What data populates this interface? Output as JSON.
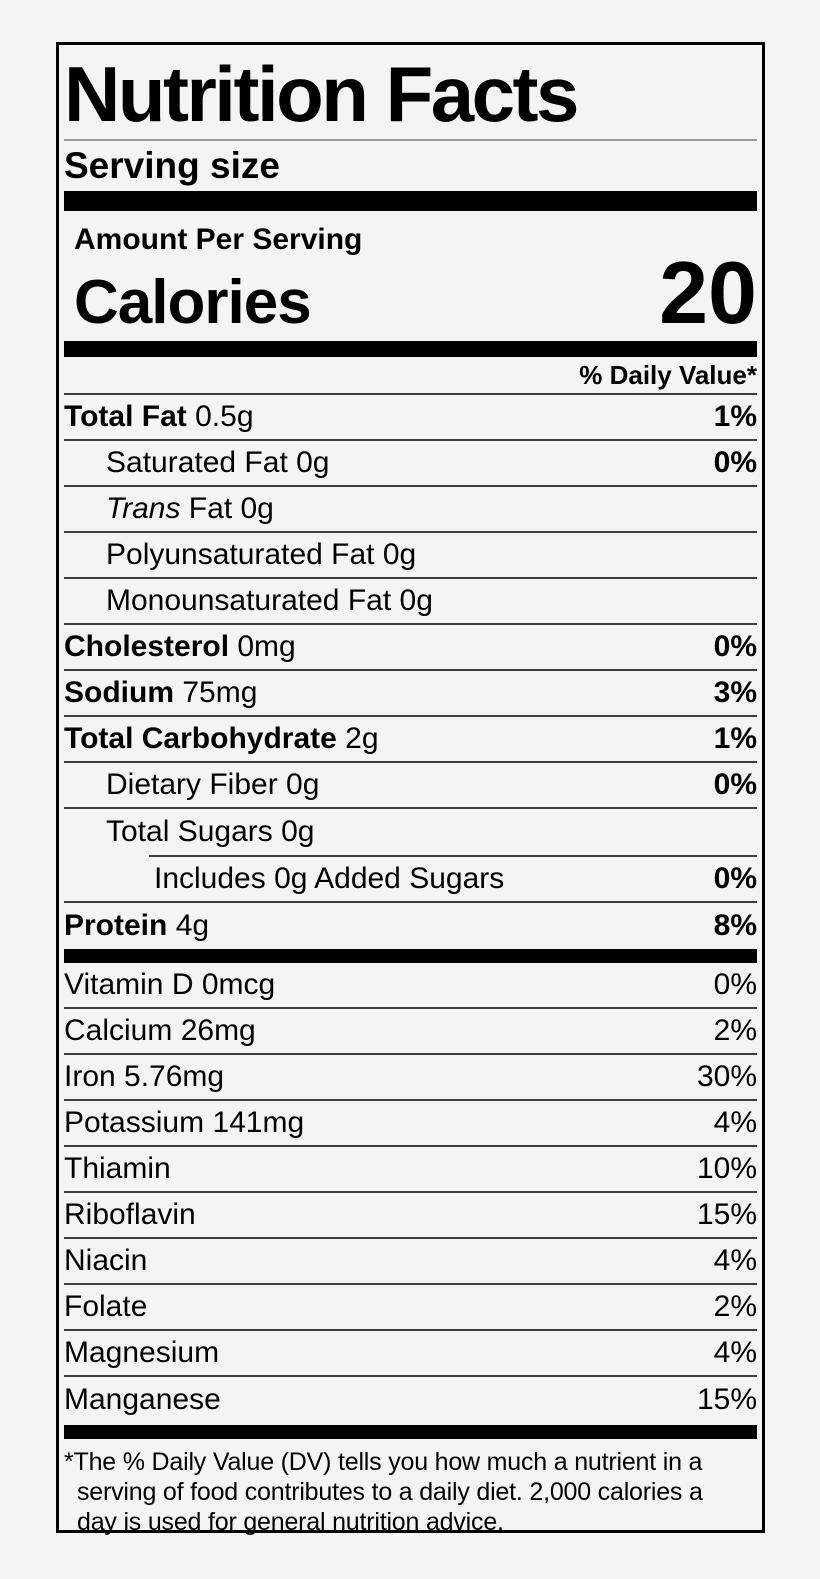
{
  "label": {
    "title": "Nutrition Facts",
    "serving_size_label": "Serving size",
    "amount_per_serving_label": "Amount Per Serving",
    "calories_label": "Calories",
    "calories_value": "20",
    "daily_value_header": "% Daily Value*",
    "colors": {
      "background": "#f4f4f5",
      "text": "#000000",
      "thick_bar": "#000000",
      "row_divider": "#3d3d3d",
      "title_underline": "#9a9a9a"
    },
    "nutrients": [
      {
        "name": "Total Fat",
        "amount": "0.5g",
        "style": "bold",
        "percent": "1%",
        "percent_bold": true,
        "indent": 0
      },
      {
        "name": "Saturated Fat",
        "amount": "0g",
        "style": "plain",
        "percent": "0%",
        "percent_bold": true,
        "indent": 1
      },
      {
        "name": "Trans",
        "amount": "Fat 0g",
        "style": "italic",
        "percent": "",
        "percent_bold": false,
        "indent": 1
      },
      {
        "name": "Polyunsaturated Fat",
        "amount": "0g",
        "style": "plain",
        "percent": "",
        "percent_bold": false,
        "indent": 1
      },
      {
        "name": "Monounsaturated Fat",
        "amount": "0g",
        "style": "plain",
        "percent": "",
        "percent_bold": false,
        "indent": 1
      },
      {
        "name": "Cholesterol",
        "amount": "0mg",
        "style": "bold",
        "percent": "0%",
        "percent_bold": true,
        "indent": 0
      },
      {
        "name": "Sodium",
        "amount": "75mg",
        "style": "bold",
        "percent": "3%",
        "percent_bold": true,
        "indent": 0
      },
      {
        "name": "Total Carbohydrate",
        "amount": "2g",
        "style": "bold",
        "percent": "1%",
        "percent_bold": true,
        "indent": 0
      },
      {
        "name": "Dietary Fiber",
        "amount": "0g",
        "style": "plain",
        "percent": "0%",
        "percent_bold": true,
        "indent": 1
      },
      {
        "name": "Total Sugars",
        "amount": "0g",
        "style": "plain",
        "percent": "",
        "percent_bold": false,
        "indent": 1,
        "no_divider": true
      },
      {
        "name": "Includes 0g Added Sugars",
        "amount": "",
        "style": "plain",
        "percent": "0%",
        "percent_bold": true,
        "indent": 2,
        "partial_divider_above": true
      },
      {
        "name": "Protein",
        "amount": "4g",
        "style": "bold",
        "percent": "8%",
        "percent_bold": true,
        "indent": 0,
        "no_divider": true
      }
    ],
    "vitamins": [
      {
        "name": "Vitamin D",
        "amount": "0mcg",
        "style": "plain",
        "percent": "0%",
        "percent_bold": false,
        "indent": 0
      },
      {
        "name": "Calcium",
        "amount": "26mg",
        "style": "plain",
        "percent": "2%",
        "percent_bold": false,
        "indent": 0
      },
      {
        "name": "Iron",
        "amount": "5.76mg",
        "style": "plain",
        "percent": "30%",
        "percent_bold": false,
        "indent": 0
      },
      {
        "name": "Potassium",
        "amount": "141mg",
        "style": "plain",
        "percent": "4%",
        "percent_bold": false,
        "indent": 0
      },
      {
        "name": "Thiamin",
        "amount": "",
        "style": "plain",
        "percent": "10%",
        "percent_bold": false,
        "indent": 0
      },
      {
        "name": "Riboflavin",
        "amount": "",
        "style": "plain",
        "percent": "15%",
        "percent_bold": false,
        "indent": 0
      },
      {
        "name": "Niacin",
        "amount": "",
        "style": "plain",
        "percent": "4%",
        "percent_bold": false,
        "indent": 0
      },
      {
        "name": "Folate",
        "amount": "",
        "style": "plain",
        "percent": "2%",
        "percent_bold": false,
        "indent": 0
      },
      {
        "name": "Magnesium",
        "amount": "",
        "style": "plain",
        "percent": "4%",
        "percent_bold": false,
        "indent": 0
      },
      {
        "name": "Manganese",
        "amount": "",
        "style": "plain",
        "percent": "15%",
        "percent_bold": false,
        "indent": 0,
        "no_divider": true
      }
    ],
    "footnote_lines": [
      "*The % Daily Value (DV) tells you how much a nutrient in a",
      "serving of food contributes to a daily diet. 2,000 calories a",
      "day is used for general nutrition advice."
    ]
  }
}
